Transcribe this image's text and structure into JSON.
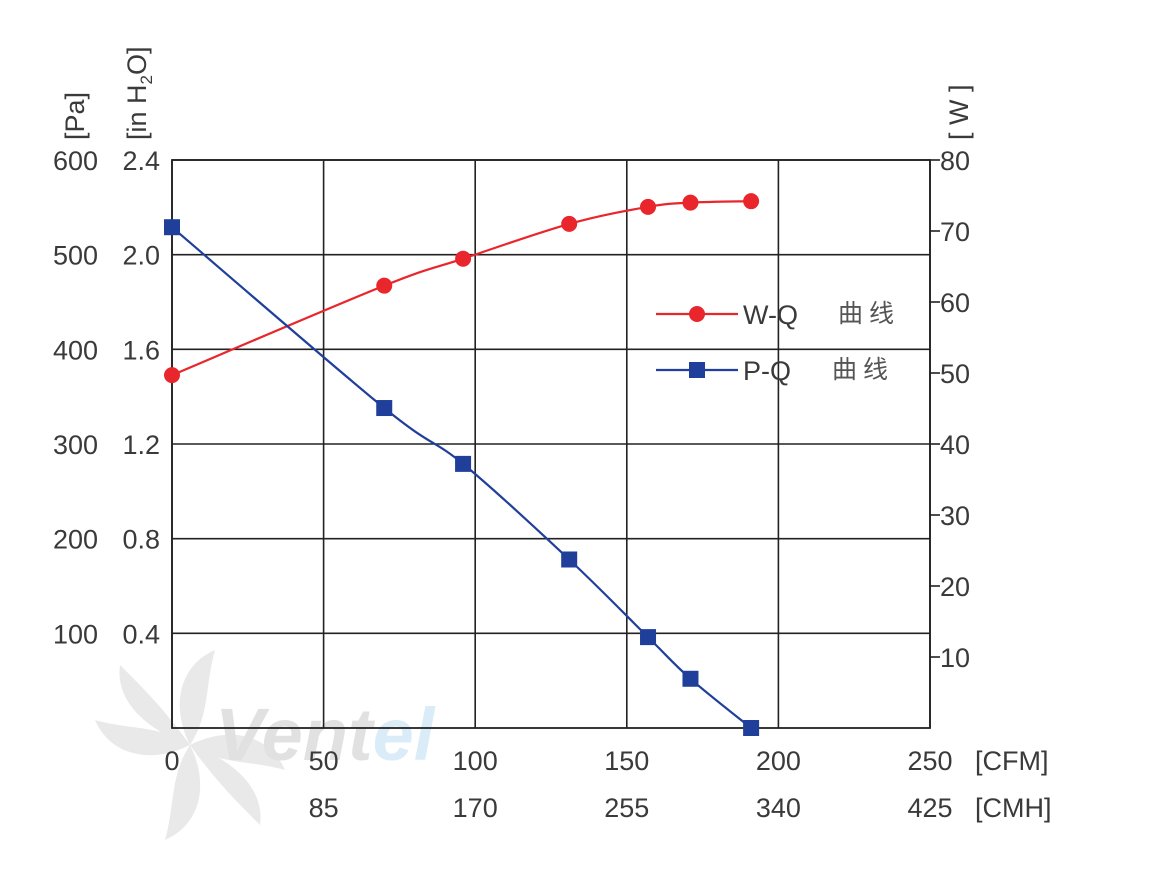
{
  "chart_data": {
    "type": "line",
    "axes": {
      "y_left_pa": {
        "unit": "[Pa]",
        "ticks": [
          "600",
          "500",
          "400",
          "300",
          "200",
          "100"
        ],
        "range": [
          0,
          600
        ]
      },
      "y_left_inh2o": {
        "unit": "[in H2O]",
        "ticks": [
          "2.4",
          "2.0",
          "1.6",
          "1.2",
          "0.8",
          "0.4"
        ],
        "range": [
          0,
          2.4
        ]
      },
      "y_right_w": {
        "unit": "[ W ]",
        "ticks": [
          "80",
          "70",
          "60",
          "50",
          "40",
          "30",
          "20",
          "10"
        ],
        "range": [
          0,
          80
        ]
      },
      "x_cfm": {
        "unit": "[CFM]",
        "ticks": [
          "0",
          "50",
          "100",
          "150",
          "200",
          "250"
        ],
        "range": [
          0,
          250
        ]
      },
      "x_cmh": {
        "unit": "[CMH]",
        "ticks": [
          "85",
          "170",
          "255",
          "340",
          "425"
        ]
      }
    },
    "grid": true,
    "legend": {
      "position": "right-middle",
      "suffix": "曲线"
    },
    "series": [
      {
        "name": "W-Q",
        "color": "#e8262b",
        "marker": "circle",
        "y_axis": "y_right_w",
        "x": [
          0,
          70,
          96,
          131,
          157,
          171,
          191
        ],
        "y": [
          49.7,
          62.3,
          66.1,
          71.0,
          73.4,
          74.0,
          74.2
        ]
      },
      {
        "name": "P-Q",
        "color": "#1f3f9b",
        "marker": "square",
        "y_axis": "y_left_pa",
        "x": [
          0,
          70,
          96,
          131,
          157,
          171,
          191
        ],
        "y": [
          529,
          338,
          279,
          178,
          96,
          52,
          0
        ]
      }
    ]
  },
  "watermark": {
    "prefix": "Ve",
    "mid": "nt",
    "suffix": "el"
  }
}
